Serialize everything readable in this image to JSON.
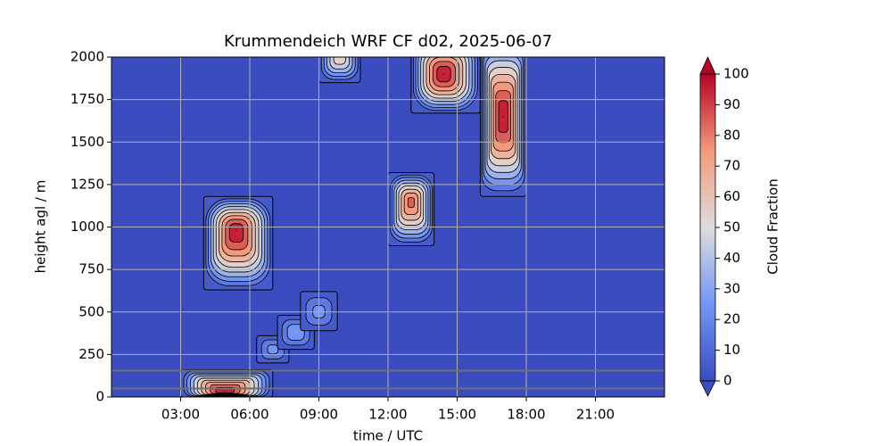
{
  "chart_data": {
    "type": "contour",
    "title": "Krummendeich WRF CF d02, 2025-06-07",
    "x_label": "time / UTC",
    "y_label": "height agl / m",
    "colorbar_label": "Cloud Fraction",
    "xlim": [
      0,
      24
    ],
    "xticks": [
      {
        "value": 3,
        "label": "03:00"
      },
      {
        "value": 6,
        "label": "06:00"
      },
      {
        "value": 9,
        "label": "09:00"
      },
      {
        "value": 12,
        "label": "12:00"
      },
      {
        "value": 15,
        "label": "15:00"
      },
      {
        "value": 18,
        "label": "18:00"
      },
      {
        "value": 21,
        "label": "21:00"
      }
    ],
    "ylim": [
      0,
      2000
    ],
    "yticks": [
      0,
      250,
      500,
      750,
      1000,
      1250,
      1500,
      1750,
      2000
    ],
    "clim": [
      0,
      100
    ],
    "cticks": [
      0,
      10,
      20,
      30,
      40,
      50,
      60,
      70,
      80,
      90,
      100
    ],
    "colormap": "coolwarm",
    "contour_step": 10,
    "grid": true,
    "reference_lines": [
      50,
      155
    ],
    "cells": [
      {
        "x": 4.9,
        "y": 30,
        "x_extent": [
          3.0,
          7.0
        ],
        "y_extent": [
          0,
          160
        ],
        "peak": 100
      },
      {
        "x": 5.4,
        "y": 980,
        "x_extent": [
          4.0,
          7.0
        ],
        "y_extent": [
          630,
          1180
        ],
        "peak": 100
      },
      {
        "x": 7.0,
        "y": 280,
        "x_extent": [
          6.3,
          7.7
        ],
        "y_extent": [
          200,
          360
        ],
        "peak": 25
      },
      {
        "x": 8.0,
        "y": 380,
        "x_extent": [
          7.2,
          8.8
        ],
        "y_extent": [
          280,
          480
        ],
        "peak": 30
      },
      {
        "x": 9.0,
        "y": 500,
        "x_extent": [
          8.2,
          9.8
        ],
        "y_extent": [
          390,
          620
        ],
        "peak": 25
      },
      {
        "x": 9.9,
        "y": 2000,
        "x_extent": [
          9.0,
          10.8
        ],
        "y_extent": [
          1850,
          2150
        ],
        "peak": 60
      },
      {
        "x": 13.0,
        "y": 1150,
        "x_extent": [
          12.0,
          14.0
        ],
        "y_extent": [
          890,
          1320
        ],
        "peak": 85
      },
      {
        "x": 14.4,
        "y": 1900,
        "x_extent": [
          13.0,
          16.0
        ],
        "y_extent": [
          1670,
          2130
        ],
        "peak": 100
      },
      {
        "x": 17.0,
        "y": 1650,
        "x_extent": [
          16.0,
          18.0
        ],
        "y_extent": [
          1180,
          2120
        ],
        "peak": 100
      }
    ]
  }
}
